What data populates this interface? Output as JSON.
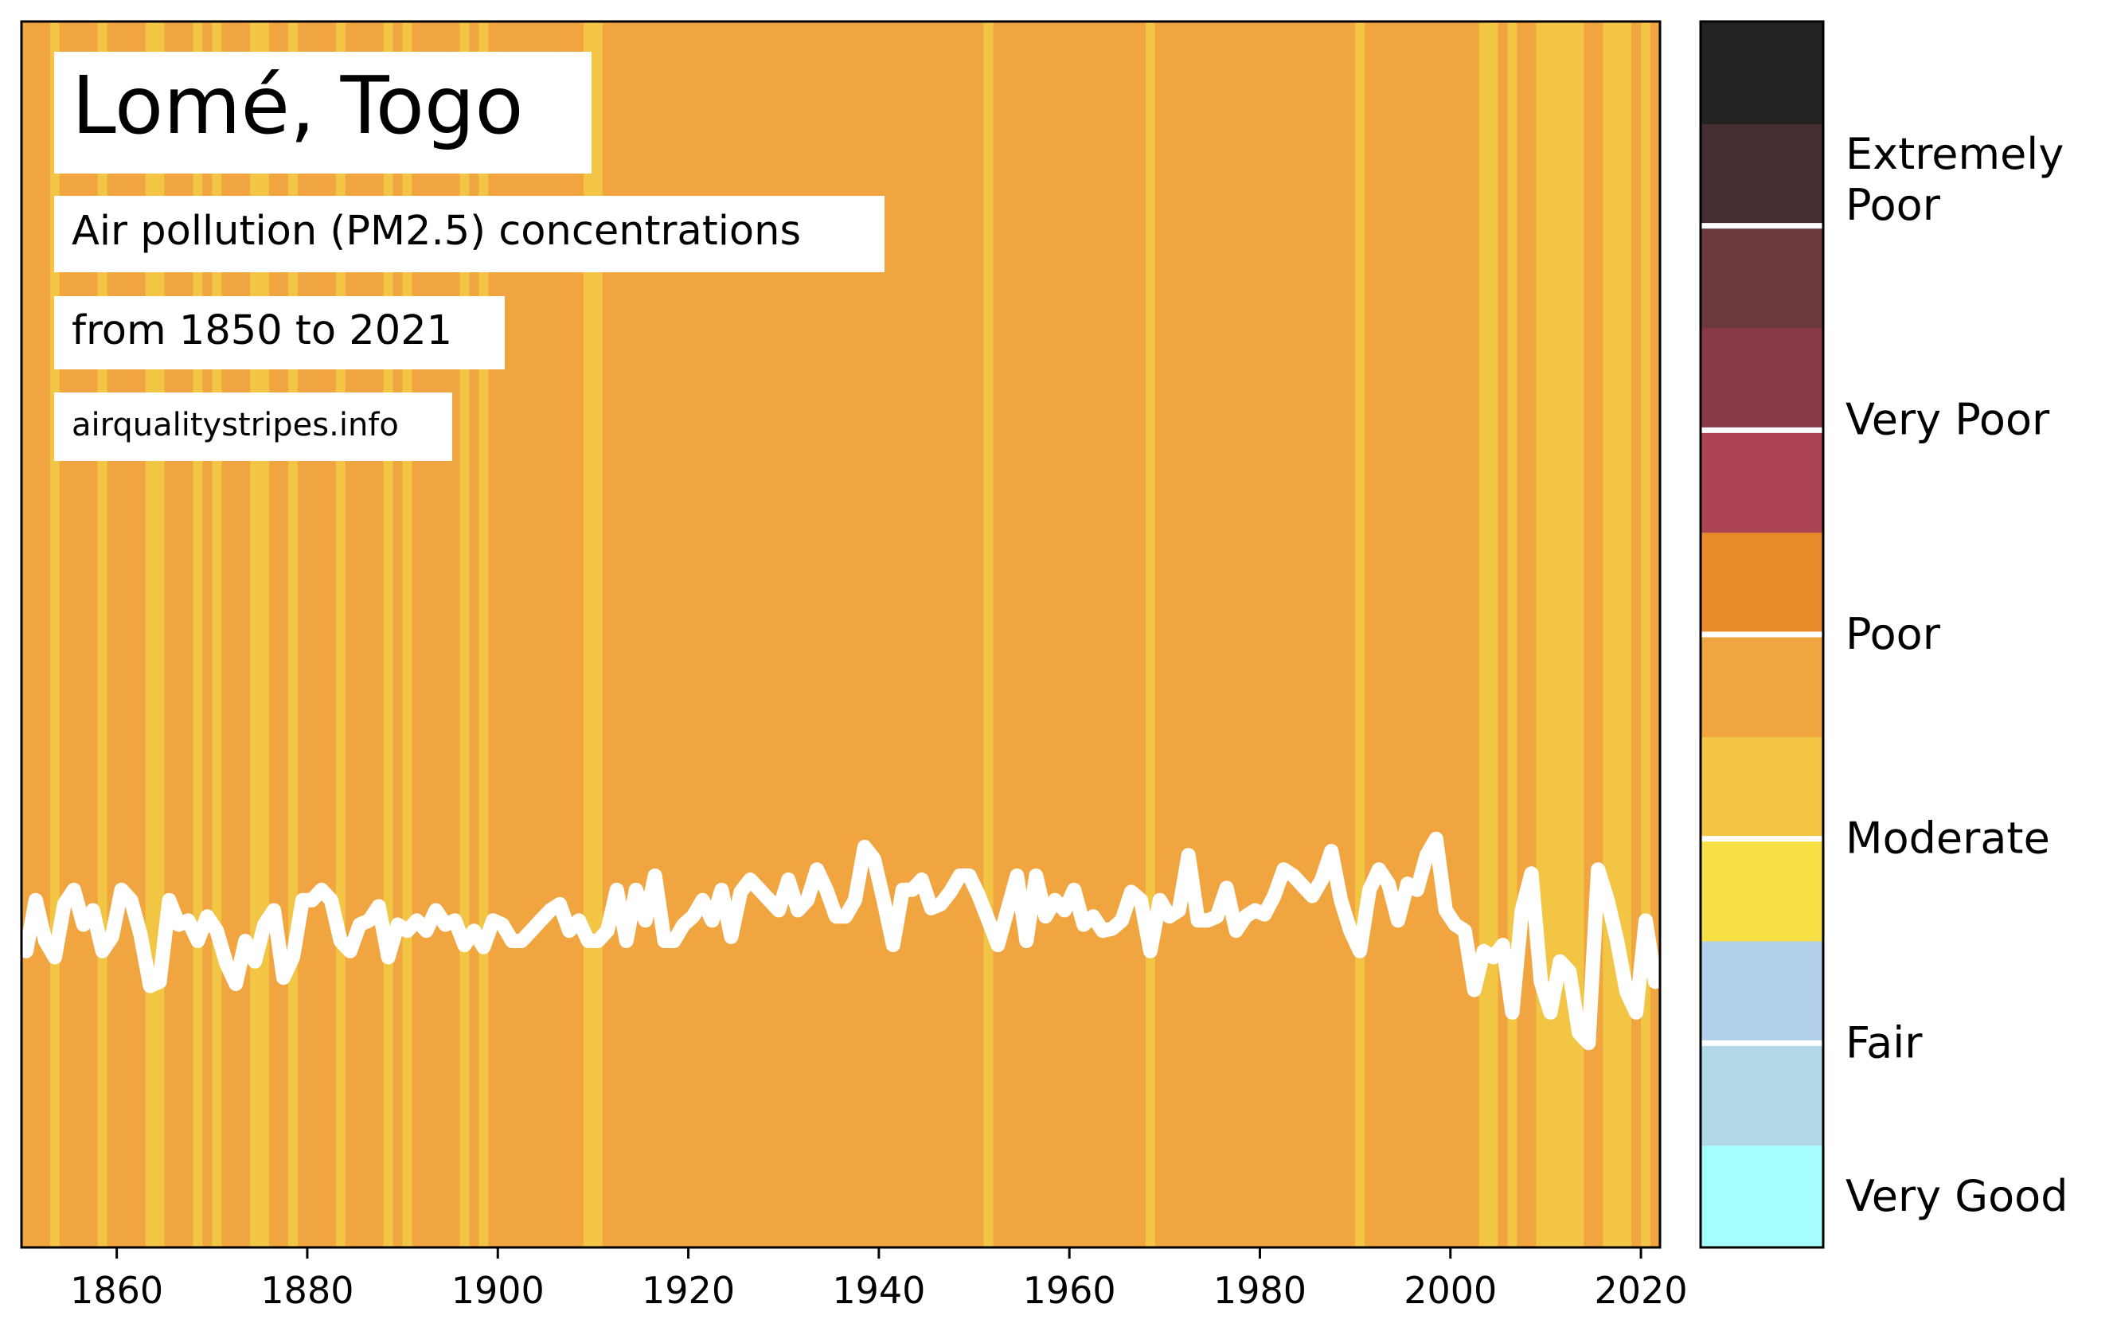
{
  "chart_data": {
    "type": "heatmap",
    "title": "Lomé, Togo",
    "subtitle_line1": "Air pollution (PM2.5) concentrations",
    "subtitle_line2": "from 1850 to 2021",
    "source": "airqualitystripes.info",
    "xlim": [
      1850,
      2022
    ],
    "x_ticks": [
      1860,
      1880,
      1900,
      1920,
      1940,
      1960,
      1980,
      2000,
      2020
    ],
    "ylim": [
      0,
      60
    ],
    "stripe_colors": {
      "poor": "#f0a540",
      "moderate": "#f2c545"
    },
    "default_category": "poor",
    "moderate_years": [
      1853,
      1858,
      1863,
      1864,
      1868,
      1870,
      1874,
      1875,
      1878,
      1883,
      1888,
      1890,
      1896,
      1898,
      1909,
      1910,
      1951,
      1968,
      1990,
      2003,
      2004,
      2006,
      2009,
      2010,
      2011,
      2012,
      2013,
      2016,
      2017,
      2018,
      2020
    ],
    "series": [
      {
        "x": [
          1850,
          1851,
          1852,
          1853,
          1854,
          1855,
          1856,
          1857,
          1858,
          1859,
          1860,
          1861,
          1862,
          1863,
          1864,
          1865,
          1866,
          1867,
          1868,
          1869,
          1870,
          1871,
          1872,
          1873,
          1874,
          1875,
          1876,
          1877,
          1878,
          1879,
          1880,
          1881,
          1882,
          1883,
          1884,
          1885,
          1886,
          1887,
          1888,
          1889,
          1890,
          1891,
          1892,
          1893,
          1894,
          1895,
          1896,
          1897,
          1898,
          1899,
          1900,
          1901,
          1902,
          1903,
          1904,
          1905,
          1906,
          1907,
          1908,
          1909,
          1910,
          1911,
          1912,
          1913,
          1914,
          1915,
          1916,
          1917,
          1918,
          1919,
          1920,
          1921,
          1922,
          1923,
          1924,
          1925,
          1926,
          1927,
          1928,
          1929,
          1930,
          1931,
          1932,
          1933,
          1934,
          1935,
          1936,
          1937,
          1938,
          1939,
          1940,
          1941,
          1942,
          1943,
          1944,
          1945,
          1946,
          1947,
          1948,
          1949,
          1950,
          1951,
          1952,
          1953,
          1954,
          1955,
          1956,
          1957,
          1958,
          1959,
          1960,
          1961,
          1962,
          1963,
          1964,
          1965,
          1966,
          1967,
          1968,
          1969,
          1970,
          1971,
          1972,
          1973,
          1974,
          1975,
          1976,
          1977,
          1978,
          1979,
          1980,
          1981,
          1982,
          1983,
          1984,
          1985,
          1986,
          1987,
          1988,
          1989,
          1990,
          1991,
          1992,
          1993,
          1994,
          1995,
          1996,
          1997,
          1998,
          1999,
          2000,
          2001,
          2002,
          2003,
          2004,
          2005,
          2006,
          2007,
          2008,
          2009,
          2010,
          2011,
          2012,
          2013,
          2014,
          2015,
          2016,
          2017,
          2018,
          2019,
          2020,
          2021
        ],
        "y": [
          14.5,
          17.0,
          15.0,
          14.2,
          16.8,
          17.5,
          15.8,
          16.5,
          14.5,
          15.2,
          17.5,
          17.0,
          15.3,
          12.8,
          13.0,
          17.0,
          15.8,
          16.0,
          15.0,
          16.2,
          15.5,
          13.9,
          12.9,
          15.0,
          14.0,
          15.8,
          16.5,
          13.2,
          14.2,
          17.0,
          17.0,
          17.5,
          17.0,
          15.0,
          14.5,
          15.8,
          16.0,
          16.7,
          14.2,
          15.8,
          15.5,
          16.0,
          15.5,
          16.5,
          15.8,
          16.0,
          14.8,
          15.5,
          14.7,
          16.0,
          15.8,
          15.0,
          15.0,
          15.5,
          16.0,
          16.5,
          16.8,
          15.5,
          16.0,
          15.0,
          15.0,
          15.5,
          17.5,
          15.0,
          17.5,
          16.0,
          18.2,
          15.0,
          15.0,
          15.8,
          16.2,
          17.0,
          16.0,
          17.5,
          15.2,
          17.4,
          18.0,
          17.5,
          17.0,
          16.5,
          18.0,
          16.5,
          17.0,
          18.5,
          17.5,
          16.2,
          16.2,
          17.0,
          19.6,
          19.0,
          17.0,
          14.8,
          17.5,
          17.5,
          18.0,
          16.6,
          16.8,
          17.4,
          18.2,
          18.2,
          17.2,
          16.0,
          14.8,
          16.5,
          18.2,
          15.0,
          18.2,
          16.2,
          17.0,
          16.5,
          17.5,
          15.8,
          16.2,
          15.5,
          15.6,
          16.0,
          17.4,
          17.0,
          14.5,
          17.0,
          16.2,
          16.5,
          19.2,
          16.0,
          16.0,
          16.2,
          17.6,
          15.5,
          16.2,
          16.5,
          16.3,
          17.2,
          18.5,
          18.2,
          17.7,
          17.2,
          18.0,
          19.4,
          17.0,
          15.5,
          14.5,
          17.5,
          18.5,
          17.8,
          16.0,
          17.8,
          17.5,
          19.2,
          20.0,
          16.5,
          15.8,
          15.5,
          12.6,
          14.5,
          14.2,
          14.8,
          11.5,
          16.5,
          18.3,
          13.0,
          11.5,
          14.0,
          13.5,
          10.5,
          10.0,
          18.5,
          17.0,
          15.0,
          12.5,
          11.5,
          16.0,
          13.0
        ]
      }
    ],
    "legend": {
      "scale": [
        {
          "color": "#a6fdfd"
        },
        {
          "color": "#b0d8e7"
        },
        {
          "color": "#b2cfeb"
        },
        {
          "color": "#f7e046"
        },
        {
          "color": "#f2c545"
        },
        {
          "color": "#f0a540"
        },
        {
          "color": "#e88a2a"
        },
        {
          "color": "#ad4453"
        },
        {
          "color": "#8a3a46"
        },
        {
          "color": "#6b383c"
        },
        {
          "color": "#452d30"
        },
        {
          "color": "#232323"
        }
      ],
      "separators_after": [
        1,
        3,
        5,
        7,
        9
      ],
      "labels": [
        {
          "text": "Very Good",
          "level": 0.5
        },
        {
          "text": "Fair",
          "level": 2.0
        },
        {
          "text": "Moderate",
          "level": 4.0
        },
        {
          "text": "Poor",
          "level": 6.0
        },
        {
          "text": "Very Poor",
          "level": 8.1
        },
        {
          "text": "Extremely",
          "level": 10.7
        },
        {
          "text": "Poor",
          "level": 10.2
        }
      ]
    }
  }
}
